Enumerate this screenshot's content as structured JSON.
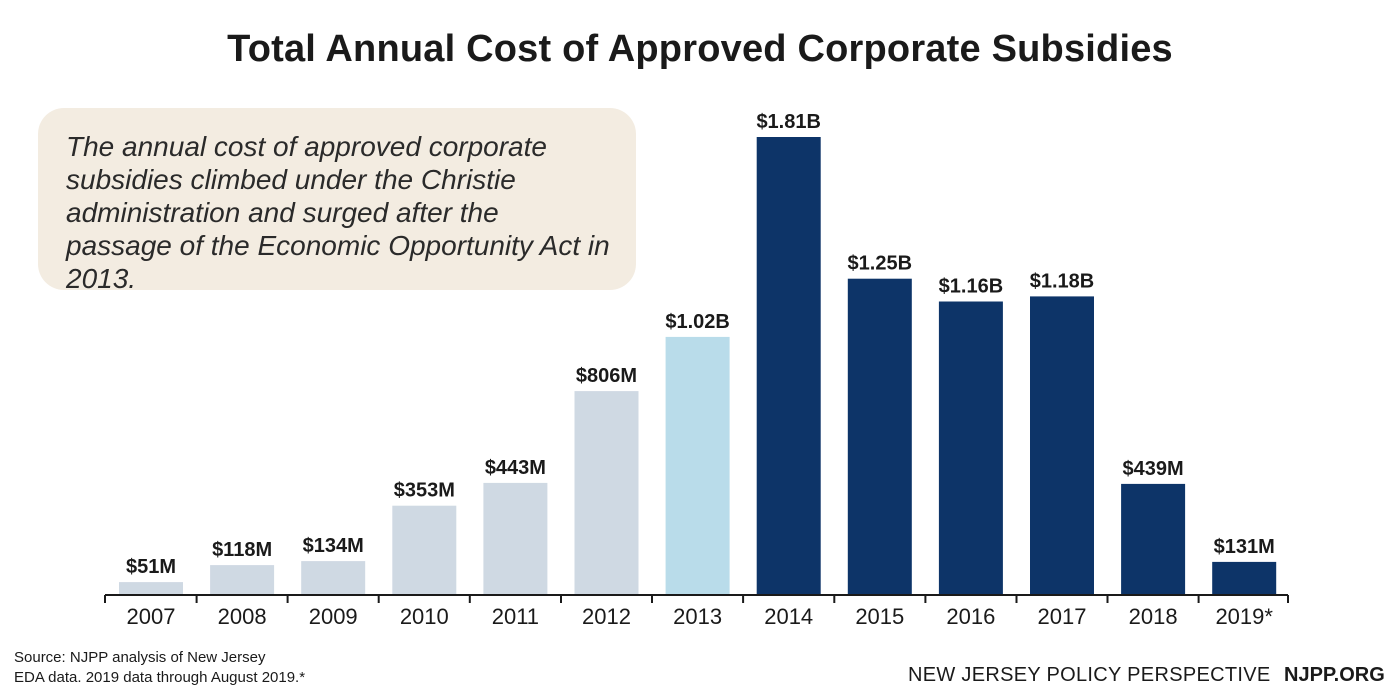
{
  "chart_data": {
    "type": "bar",
    "title": "Total Annual Cost of Approved Corporate Subsidies",
    "annotation": "The annual cost of approved corporate subsidies climbed under the Christie administration and surged after the passage of the Economic Opportunity Act in 2013.",
    "categories": [
      "2007",
      "2008",
      "2009",
      "2010",
      "2011",
      "2012",
      "2013",
      "2014",
      "2015",
      "2016",
      "2017",
      "2018",
      "2019*"
    ],
    "values": [
      51,
      118,
      134,
      353,
      443,
      806,
      1020,
      1810,
      1250,
      1160,
      1180,
      439,
      131
    ],
    "value_labels": [
      "$51M",
      "$118M",
      "$134M",
      "$353M",
      "$443M",
      "$806M",
      "$1.02B",
      "$1.81B",
      "$1.25B",
      "$1.16B",
      "$1.18B",
      "$439M",
      "$131M"
    ],
    "bar_colors": [
      "#cfd9e3",
      "#cfd9e3",
      "#cfd9e3",
      "#cfd9e3",
      "#cfd9e3",
      "#cfd9e3",
      "#b9dcea",
      "#0d3468",
      "#0d3468",
      "#0d3468",
      "#0d3468",
      "#0d3468",
      "#0d3468"
    ],
    "xlabel": "",
    "ylabel": "",
    "ylim": [
      0,
      1810
    ],
    "grid": false,
    "legend": "none"
  },
  "source": {
    "line1": "Source: NJPP analysis of New Jersey",
    "line2": "EDA data. 2019 data through August 2019.*"
  },
  "footer": {
    "org": "NEW JERSEY POLICY PERSPECTIVE",
    "site": "NJPP.ORG"
  },
  "colors": {
    "axis": "#1a1a1a",
    "label": "#1a1a1a"
  }
}
